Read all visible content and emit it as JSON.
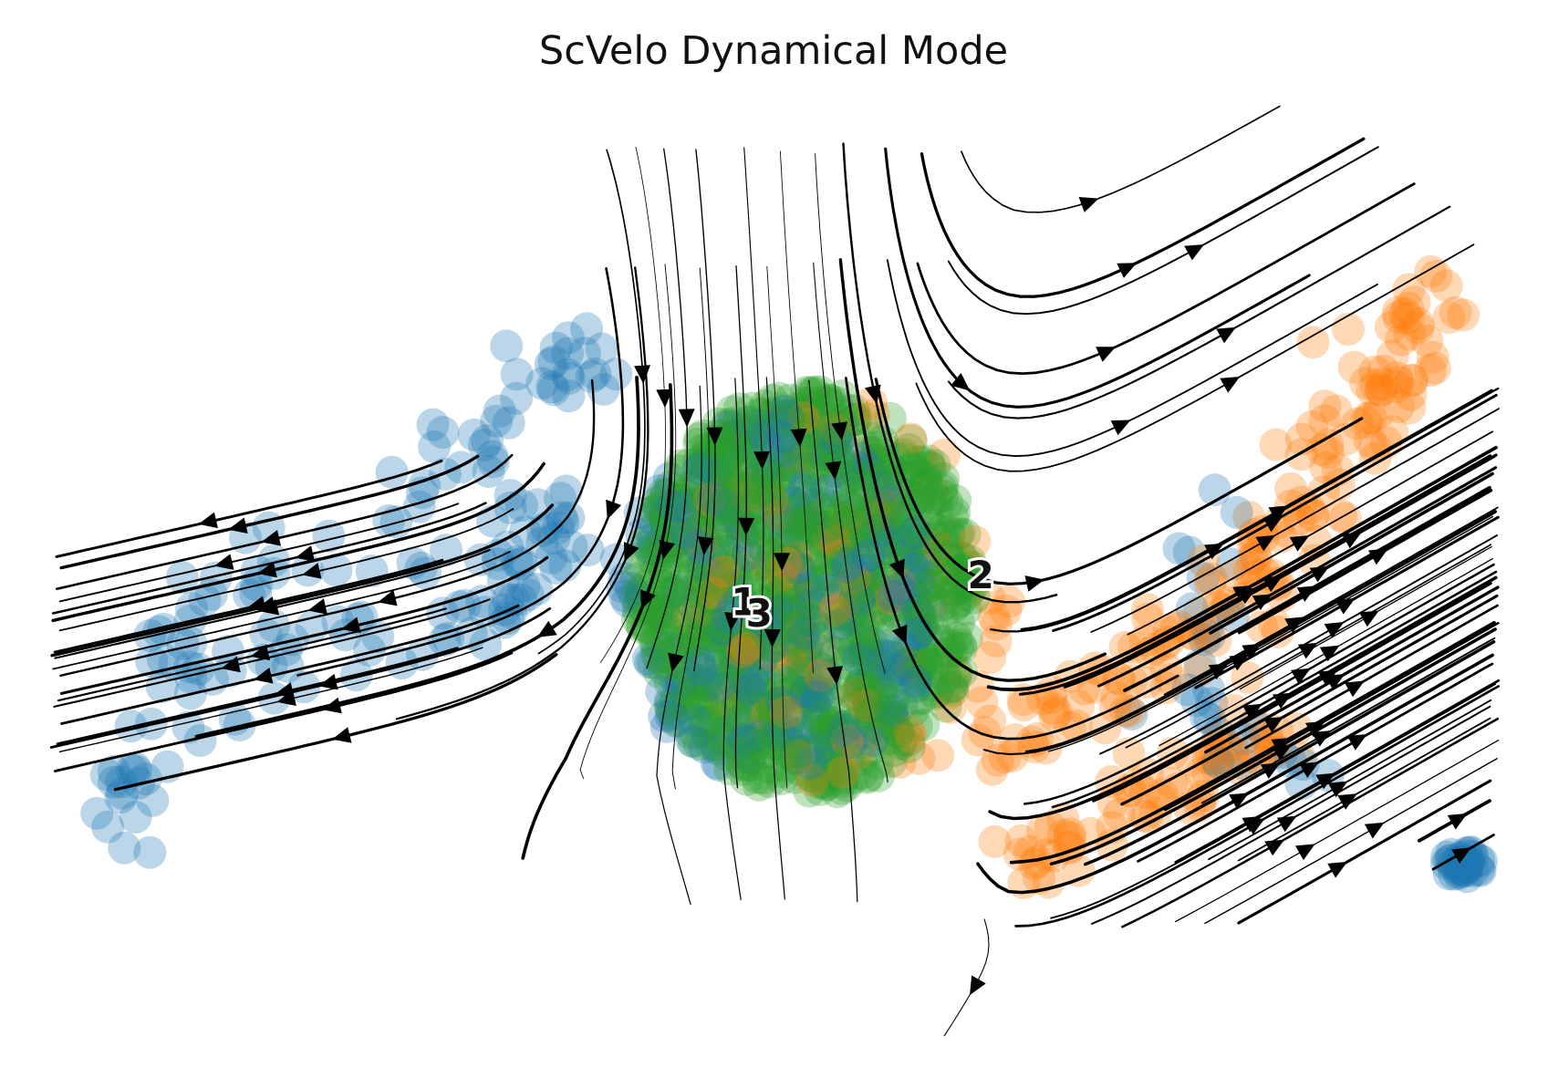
{
  "chart_data": {
    "type": "scatter",
    "title": "ScVelo Dynamical Mode",
    "xlabel": "",
    "ylabel": "",
    "axes_visible": false,
    "grid": false,
    "legend": "on-data",
    "xlim": [
      0,
      100
    ],
    "ylim": [
      0,
      100
    ],
    "colors": {
      "cluster_1": "#1f77b4",
      "cluster_2": "#ff7f0e",
      "cluster_3": "#2ca02c"
    },
    "point_alpha": 0.3,
    "cluster_labels": [
      {
        "text": "1",
        "x": 47.9,
        "y": 45.8,
        "color": "#1f77b4"
      },
      {
        "text": "3",
        "x": 48.9,
        "y": 44.6,
        "color": "#2ca02c"
      },
      {
        "text": "2",
        "x": 63.9,
        "y": 48.6,
        "color": "#ff7f0e"
      }
    ],
    "cluster_regions": [
      {
        "cluster": "1",
        "region": "left arm",
        "count": 130,
        "path": [
          [
            4,
            22
          ],
          [
            8,
            34
          ],
          [
            8,
            44
          ],
          [
            16,
            52
          ],
          [
            30,
            54
          ],
          [
            36,
            56
          ],
          [
            34,
            48
          ],
          [
            28,
            46
          ],
          [
            18,
            42
          ],
          [
            10,
            36
          ],
          [
            6,
            26
          ]
        ],
        "spread": 3.0
      },
      {
        "cluster": "1",
        "region": "upper left bridge",
        "count": 40,
        "path": [
          [
            26,
            60
          ],
          [
            30,
            64
          ],
          [
            35,
            70
          ],
          [
            38,
            73
          ]
        ],
        "spread": 2.5
      },
      {
        "cluster": "1",
        "region": "right blob",
        "count": 35,
        "center": [
          96.5,
          20
        ],
        "spread": [
          1.4,
          3.0
        ]
      },
      {
        "cluster": "1",
        "region": "right pieces",
        "count": 30,
        "path": [
          [
            80,
            56
          ],
          [
            78,
            40
          ],
          [
            82,
            32
          ],
          [
            86,
            28
          ]
        ],
        "spread": 2.5
      },
      {
        "cluster": "2",
        "region": "right arm",
        "count": 170,
        "path": [
          [
            64,
            32
          ],
          [
            70,
            36
          ],
          [
            76,
            42
          ],
          [
            82,
            50
          ],
          [
            86,
            58
          ],
          [
            90,
            66
          ],
          [
            92,
            74
          ],
          [
            95,
            82
          ]
        ],
        "spread": 3.2
      },
      {
        "cluster": "2",
        "region": "right arm lower",
        "count": 70,
        "path": [
          [
            66,
            20
          ],
          [
            72,
            24
          ],
          [
            78,
            30
          ],
          [
            84,
            34
          ]
        ],
        "spread": 2.5
      },
      {
        "cluster": "3",
        "region": "central body",
        "count": 950,
        "center": [
          52,
          48
        ],
        "spread": [
          11.5,
          42
        ]
      },
      {
        "cluster": "1",
        "region": "central mix",
        "count": 260,
        "center": [
          50,
          48
        ],
        "spread": [
          11,
          38
        ]
      },
      {
        "cluster": "2",
        "region": "central mix",
        "count": 110,
        "center": [
          55,
          48
        ],
        "spread": [
          11,
          40
        ]
      }
    ]
  }
}
